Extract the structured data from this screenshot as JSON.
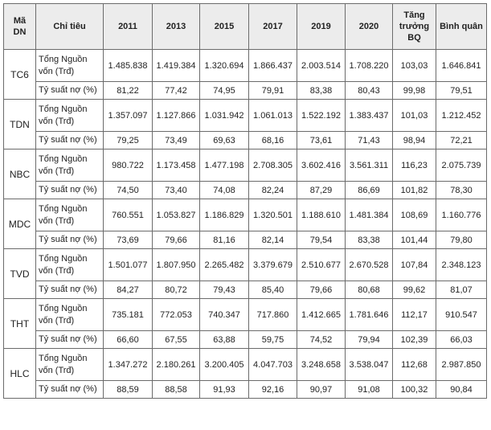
{
  "table": {
    "headers": {
      "company": "Mã DN",
      "indicator": "Chỉ tiêu",
      "years": [
        "2011",
        "2013",
        "2015",
        "2017",
        "2019",
        "2020"
      ],
      "growth": "Tăng trưởng BQ",
      "average": "Bình quân"
    },
    "rows": [
      {
        "company": "TC6",
        "capital_label": "Tổng Nguồn vốn (Trđ)",
        "capital": [
          "1.485.838",
          "1.419.384",
          "1.320.694",
          "1.866.437",
          "2.003.514",
          "1.708.220",
          "103,03",
          "1.646.841"
        ],
        "debt_label": "Tỷ suất nợ (%)",
        "debt": [
          "81,22",
          "77,42",
          "74,95",
          "79,91",
          "83,38",
          "80,43",
          "99,98",
          "79,51"
        ]
      },
      {
        "company": "TDN",
        "capital_label": "Tổng Nguồn vốn (Trđ)",
        "capital": [
          "1.357.097",
          "1.127.866",
          "1.031.942",
          "1.061.013",
          "1.522.192",
          "1.383.437",
          "101,03",
          "1.212.452"
        ],
        "debt_label": "Tỷ suất nợ (%)",
        "debt": [
          "79,25",
          "73,49",
          "69,63",
          "68,16",
          "73,61",
          "71,43",
          "98,94",
          "72,21"
        ]
      },
      {
        "company": "NBC",
        "capital_label": "Tổng Nguồn vốn (Trđ)",
        "capital": [
          "980.722",
          "1.173.458",
          "1.477.198",
          "2.708.305",
          "3.602.416",
          "3.561.311",
          "116,23",
          "2.075.739"
        ],
        "debt_label": "Tỷ suất nợ (%)",
        "debt": [
          "74,50",
          "73,40",
          "74,08",
          "82,24",
          "87,29",
          "86,69",
          "101,82",
          "78,30"
        ]
      },
      {
        "company": "MDC",
        "capital_label": "Tổng Nguồn vốn (Trđ)",
        "capital": [
          "760.551",
          "1.053.827",
          "1.186.829",
          "1.320.501",
          "1.188.610",
          "1.481.384",
          "108,69",
          "1.160.776"
        ],
        "debt_label": "Tỷ suất nợ (%)",
        "debt": [
          "73,69",
          "79,66",
          "81,16",
          "82,14",
          "79,54",
          "83,38",
          "101,44",
          "79,80"
        ]
      },
      {
        "company": "TVD",
        "capital_label": "Tổng Nguồn vốn (Trđ)",
        "capital": [
          "1.501.077",
          "1.807.950",
          "2.265.482",
          "3.379.679",
          "2.510.677",
          "2.670.528",
          "107,84",
          "2.348.123"
        ],
        "debt_label": "Tỷ suất nợ (%)",
        "debt": [
          "84,27",
          "80,72",
          "79,43",
          "85,40",
          "79,66",
          "80,68",
          "99,62",
          "81,07"
        ]
      },
      {
        "company": "THT",
        "capital_label": "Tổng Nguồn vốn (Trđ)",
        "capital": [
          "735.181",
          "772.053",
          "740.347",
          "717.860",
          "1.412.665",
          "1.781.646",
          "112,17",
          "910.547"
        ],
        "debt_label": "Tỷ suất nợ (%)",
        "debt": [
          "66,60",
          "67,55",
          "63,88",
          "59,75",
          "74,52",
          "79,94",
          "102,39",
          "66,03"
        ]
      },
      {
        "company": "HLC",
        "capital_label": "Tổng Nguồn vốn (Trđ)",
        "capital": [
          "1.347.272",
          "2.180.261",
          "3.200.405",
          "4.047.703",
          "3.248.658",
          "3.538.047",
          "112,68",
          "2.987.850"
        ],
        "debt_label": "Tỷ suất nợ (%)",
        "debt": [
          "88,59",
          "88,58",
          "91,93",
          "92,16",
          "90,97",
          "91,08",
          "100,32",
          "90,84"
        ]
      }
    ]
  }
}
